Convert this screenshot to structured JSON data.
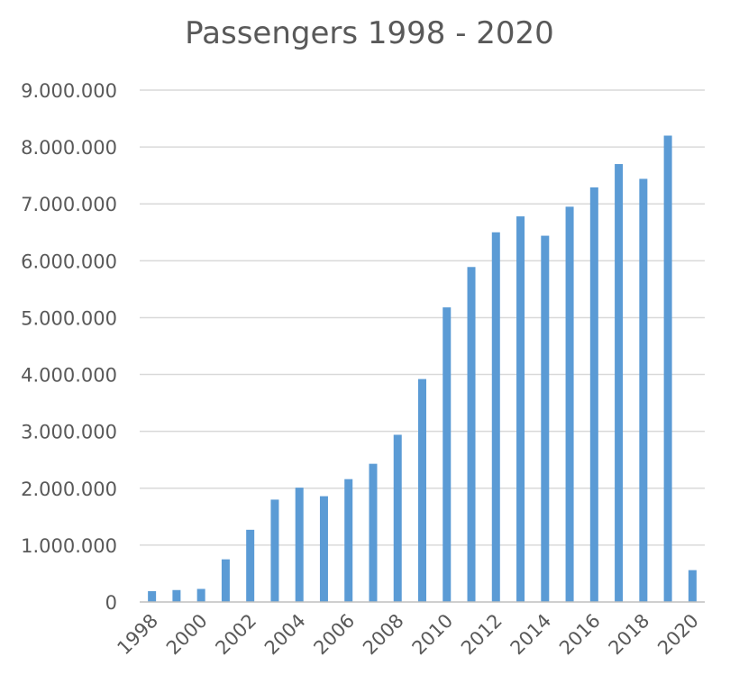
{
  "chart_data": {
    "type": "bar",
    "title": "Passengers 1998 - 2020",
    "xlabel": "",
    "ylabel": "",
    "ylim": [
      0,
      9000000
    ],
    "yticks": [
      0,
      1000000,
      2000000,
      3000000,
      4000000,
      5000000,
      6000000,
      7000000,
      8000000,
      9000000
    ],
    "ytick_labels": [
      "0",
      "1.000.000",
      "2.000.000",
      "3.000.000",
      "4.000.000",
      "5.000.000",
      "6.000.000",
      "7.000.000",
      "8.000.000",
      "9.000.000"
    ],
    "categories": [
      "1998",
      "1999",
      "2000",
      "2001",
      "2002",
      "2003",
      "2004",
      "2005",
      "2006",
      "2007",
      "2008",
      "2009",
      "2010",
      "2011",
      "2012",
      "2013",
      "2014",
      "2015",
      "2016",
      "2017",
      "2018",
      "2019",
      "2020"
    ],
    "xtick_labels": [
      "1998",
      "",
      "2000",
      "",
      "2002",
      "",
      "2004",
      "",
      "2006",
      "",
      "2008",
      "",
      "2010",
      "",
      "2012",
      "",
      "2014",
      "",
      "2016",
      "",
      "2018",
      "",
      "2020"
    ],
    "values": [
      190000,
      210000,
      230000,
      750000,
      1270000,
      1800000,
      2010000,
      1860000,
      2160000,
      2430000,
      2940000,
      3920000,
      5180000,
      5890000,
      6500000,
      6780000,
      6440000,
      6950000,
      7290000,
      7700000,
      7440000,
      8200000,
      560000
    ],
    "bar_color": "#5b9bd5",
    "grid": true,
    "legend": "none"
  }
}
